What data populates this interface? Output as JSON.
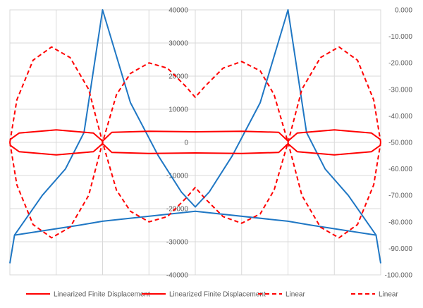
{
  "chart_data": {
    "type": "line",
    "title": "",
    "grid": true,
    "legend_position": "bottom",
    "colors": {
      "blue": "#1f77c4",
      "red": "#ff0000",
      "grid": "#d9d9d9"
    },
    "axes": {
      "y_left": {
        "min": -40000,
        "max": 40000,
        "step": 10000,
        "ticks": [
          "40000",
          "30000",
          "20000",
          "10000",
          "0",
          "-10000",
          "-20000",
          "-30000",
          "-40000"
        ]
      },
      "y_right": {
        "min": -100,
        "max": 0,
        "step": 10,
        "ticks": [
          "0.000",
          "-10.000",
          "-20.000",
          "-30.000",
          "-40.000",
          "-50.000",
          "-60.000",
          "-70.000",
          "-80.000",
          "-90.000",
          "-100.000"
        ]
      },
      "x": {
        "min": 0,
        "max": 8,
        "gridlines": [
          1,
          2,
          3,
          4,
          5,
          6,
          7
        ]
      }
    },
    "series": [
      {
        "name": "",
        "axis": "left",
        "color": "#1f77c4",
        "dash": "solid",
        "points": [
          [
            0,
            -36500
          ],
          [
            0.1,
            -28000
          ],
          [
            1.5,
            -25000
          ],
          [
            2,
            -23800
          ],
          [
            4,
            -20800
          ],
          [
            6,
            -23800
          ],
          [
            6.5,
            -25000
          ],
          [
            7.9,
            -28000
          ],
          [
            8,
            -36500
          ]
        ]
      },
      {
        "name": "",
        "axis": "left",
        "color": "#1f77c4",
        "dash": "solid",
        "points": [
          [
            0.1,
            -28000
          ],
          [
            0.7,
            -16000
          ],
          [
            1.2,
            -8000
          ],
          [
            1.6,
            3000
          ],
          [
            2,
            40000
          ],
          [
            2.6,
            12000
          ],
          [
            3.2,
            -4000
          ],
          [
            3.7,
            -15000
          ],
          [
            4,
            -19500
          ],
          [
            4.3,
            -15000
          ],
          [
            4.8,
            -4000
          ],
          [
            5.4,
            12000
          ],
          [
            6,
            40000
          ],
          [
            6.4,
            3000
          ],
          [
            6.8,
            -8000
          ],
          [
            7.3,
            -16000
          ],
          [
            7.9,
            -28000
          ]
        ]
      },
      {
        "name": "Linearized Finite Displacement",
        "axis": "right",
        "color": "#ff0000",
        "dash": "solid",
        "points": [
          [
            0,
            -49
          ],
          [
            0.2,
            -46.5
          ],
          [
            1,
            -45.3
          ],
          [
            1.8,
            -46.5
          ],
          [
            2,
            -49.5
          ],
          [
            2.2,
            -46.2
          ],
          [
            3,
            -45.8
          ],
          [
            4,
            -46
          ],
          [
            5,
            -45.8
          ],
          [
            5.8,
            -46.2
          ],
          [
            6,
            -49.5
          ],
          [
            6.2,
            -46.5
          ],
          [
            7,
            -45.3
          ],
          [
            7.8,
            -46.5
          ],
          [
            8,
            -49
          ]
        ]
      },
      {
        "name": "Linearized Finite Displacement",
        "axis": "right",
        "color": "#ff0000",
        "dash": "solid",
        "points": [
          [
            0,
            -51
          ],
          [
            0.2,
            -53.5
          ],
          [
            1,
            -54.7
          ],
          [
            1.8,
            -53.5
          ],
          [
            2,
            -50.5
          ],
          [
            2.2,
            -53.8
          ],
          [
            3,
            -54.2
          ],
          [
            4,
            -54
          ],
          [
            5,
            -54.2
          ],
          [
            5.8,
            -53.8
          ],
          [
            6,
            -50.5
          ],
          [
            6.2,
            -53.5
          ],
          [
            7,
            -54.7
          ],
          [
            7.8,
            -53.5
          ],
          [
            8,
            -51
          ]
        ]
      },
      {
        "name": "Linear",
        "axis": "right",
        "color": "#ff0000",
        "dash": "dashed",
        "points": [
          [
            0,
            -50
          ],
          [
            0.15,
            -34
          ],
          [
            0.5,
            -19
          ],
          [
            0.9,
            -14
          ],
          [
            1.3,
            -18
          ],
          [
            1.7,
            -30
          ],
          [
            2,
            -50
          ],
          [
            2.3,
            -32
          ],
          [
            2.6,
            -24
          ],
          [
            3,
            -20
          ],
          [
            3.4,
            -22
          ],
          [
            3.8,
            -29
          ],
          [
            4,
            -33
          ],
          [
            4.2,
            -29
          ],
          [
            4.6,
            -22
          ],
          [
            5,
            -19.5
          ],
          [
            5.4,
            -23
          ],
          [
            5.7,
            -32
          ],
          [
            6,
            -50
          ],
          [
            6.3,
            -30
          ],
          [
            6.7,
            -18
          ],
          [
            7.1,
            -14
          ],
          [
            7.5,
            -19
          ],
          [
            7.85,
            -34
          ],
          [
            8,
            -50
          ]
        ]
      },
      {
        "name": "Linear",
        "axis": "right",
        "color": "#ff0000",
        "dash": "dashed",
        "points": [
          [
            0,
            -50
          ],
          [
            0.15,
            -66
          ],
          [
            0.5,
            -81
          ],
          [
            0.9,
            -86
          ],
          [
            1.3,
            -82
          ],
          [
            1.7,
            -70
          ],
          [
            2,
            -50
          ],
          [
            2.3,
            -68
          ],
          [
            2.6,
            -76
          ],
          [
            3,
            -80
          ],
          [
            3.4,
            -78
          ],
          [
            3.8,
            -71
          ],
          [
            4,
            -67
          ],
          [
            4.2,
            -71
          ],
          [
            4.6,
            -78
          ],
          [
            5,
            -80.5
          ],
          [
            5.4,
            -77
          ],
          [
            5.7,
            -68
          ],
          [
            6,
            -50
          ],
          [
            6.3,
            -70
          ],
          [
            6.7,
            -82
          ],
          [
            7.1,
            -86
          ],
          [
            7.5,
            -81
          ],
          [
            7.85,
            -66
          ],
          [
            8,
            -50
          ]
        ]
      }
    ],
    "legend": [
      {
        "label": "Linearized Finite Displacement",
        "color": "#ff0000",
        "dash": "solid"
      },
      {
        "label": "Linearized Finite Displacement",
        "color": "#ff0000",
        "dash": "solid"
      },
      {
        "label": "Linear",
        "color": "#ff0000",
        "dash": "dashed"
      },
      {
        "label": "Linear",
        "color": "#ff0000",
        "dash": "dashed"
      }
    ]
  }
}
